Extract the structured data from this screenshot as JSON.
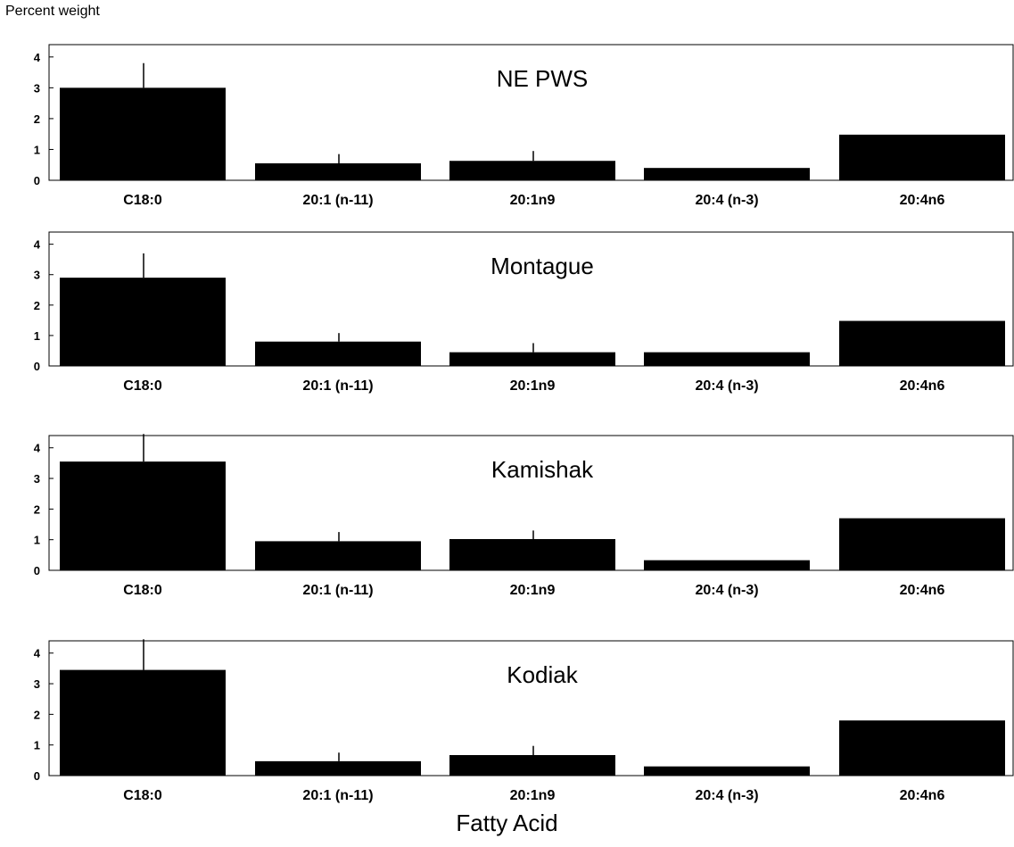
{
  "figure": {
    "ylabel": "Percent weight",
    "xlabel": "Fatty Acid"
  },
  "chart_data": [
    {
      "type": "bar",
      "title": "NE PWS",
      "categories": [
        "C18:0",
        "20:1 (n-11)",
        "20:1n9",
        "20:4 (n-3)",
        "20:4n6"
      ],
      "values": [
        3.0,
        0.55,
        0.63,
        0.4,
        1.48
      ],
      "error": [
        0.8,
        0.3,
        0.32,
        0,
        0
      ],
      "yticks": [
        0,
        1,
        2,
        3,
        4
      ],
      "ylim": [
        0,
        4.4
      ]
    },
    {
      "type": "bar",
      "title": "Montague",
      "categories": [
        "C18:0",
        "20:1 (n-11)",
        "20:1n9",
        "20:4 (n-3)",
        "20:4n6"
      ],
      "values": [
        2.9,
        0.8,
        0.45,
        0.45,
        1.48
      ],
      "error": [
        0.8,
        0.28,
        0.3,
        0,
        0
      ],
      "yticks": [
        0,
        1,
        2,
        3,
        4
      ],
      "ylim": [
        0,
        4.4
      ]
    },
    {
      "type": "bar",
      "title": "Kamishak",
      "categories": [
        "C18:0",
        "20:1 (n-11)",
        "20:1n9",
        "20:4 (n-3)",
        "20:4n6"
      ],
      "values": [
        3.55,
        0.95,
        1.02,
        0.33,
        1.7
      ],
      "error": [
        0.9,
        0.3,
        0.28,
        0,
        0
      ],
      "yticks": [
        0,
        1,
        2,
        3,
        4
      ],
      "ylim": [
        0,
        4.4
      ]
    },
    {
      "type": "bar",
      "title": "Kodiak",
      "categories": [
        "C18:0",
        "20:1 (n-11)",
        "20:1n9",
        "20:4 (n-3)",
        "20:4n6"
      ],
      "values": [
        3.45,
        0.47,
        0.67,
        0.3,
        1.8
      ],
      "error": [
        1.0,
        0.28,
        0.3,
        0,
        0
      ],
      "yticks": [
        0,
        1,
        2,
        3,
        4
      ],
      "ylim": [
        0,
        4.4
      ]
    }
  ]
}
